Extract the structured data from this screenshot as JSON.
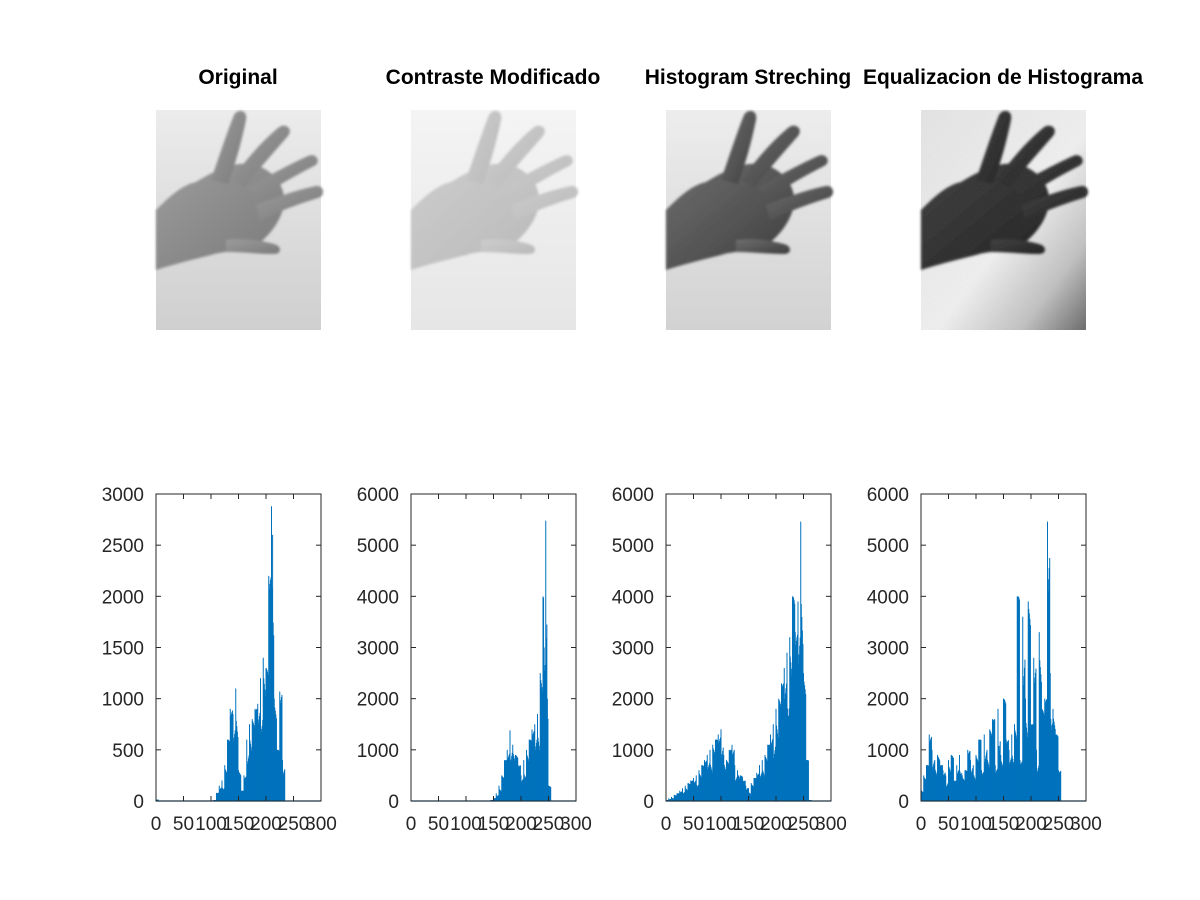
{
  "figure": {
    "background": "#ffffff",
    "series_color": "#0072bd",
    "axis_color": "#262626"
  },
  "image_panels": [
    {
      "title": "Original",
      "style": "original"
    },
    {
      "title": "Contraste Modificado",
      "style": "contrast"
    },
    {
      "title": "Histogram Streching",
      "style": "stretch"
    },
    {
      "title": "Equalizacion de Histograma",
      "style": "equalized"
    }
  ],
  "chart_data": [
    {
      "type": "bar",
      "title": "",
      "xlabel": "",
      "ylabel": "",
      "xlim": [
        0,
        300
      ],
      "ylim": [
        0,
        3000
      ],
      "xticks": [
        "0",
        "50",
        "100",
        "150",
        "200",
        "250",
        "300"
      ],
      "yticks": [
        "0",
        "500",
        "1000",
        "1500",
        "2000",
        "2500",
        "3000"
      ],
      "grid": false,
      "legend": "none",
      "series": [
        {
          "x": [
            0,
            5,
            10,
            15,
            20,
            25,
            30,
            35,
            40,
            45,
            50,
            55,
            60,
            65,
            70,
            75,
            80,
            85,
            90,
            95,
            100,
            105,
            110,
            115,
            120,
            125,
            130,
            135,
            140,
            145,
            150,
            155,
            160,
            165,
            170,
            175,
            180,
            185,
            190,
            195,
            200,
            205,
            210,
            212,
            215,
            220,
            225,
            230,
            235,
            240,
            245,
            250,
            255
          ],
          "values": [
            20,
            5,
            5,
            5,
            5,
            5,
            5,
            5,
            5,
            5,
            5,
            5,
            5,
            5,
            5,
            5,
            5,
            5,
            5,
            5,
            5,
            10,
            80,
            150,
            200,
            350,
            600,
            900,
            850,
            1100,
            300,
            100,
            250,
            600,
            750,
            800,
            900,
            950,
            1200,
            1400,
            1300,
            2200,
            2880,
            2600,
            1000,
            500,
            1070,
            400,
            0,
            0,
            0,
            0,
            0
          ]
        }
      ]
    },
    {
      "type": "bar",
      "title": "",
      "xlabel": "",
      "ylabel": "",
      "xlim": [
        0,
        300
      ],
      "ylim": [
        0,
        6000
      ],
      "xticks": [
        "0",
        "50",
        "100",
        "150",
        "200",
        "250",
        "300"
      ],
      "yticks": [
        "0",
        "1000",
        "2000",
        "3000",
        "4000",
        "5000",
        "6000"
      ],
      "grid": false,
      "legend": "none",
      "series": [
        {
          "x": [
            0,
            10,
            20,
            30,
            40,
            50,
            60,
            70,
            80,
            90,
            100,
            110,
            120,
            130,
            140,
            145,
            150,
            155,
            160,
            165,
            170,
            175,
            180,
            185,
            190,
            195,
            200,
            205,
            210,
            215,
            220,
            225,
            230,
            235,
            240,
            242,
            245,
            248,
            250,
            255
          ],
          "values": [
            10,
            5,
            5,
            5,
            5,
            5,
            5,
            5,
            5,
            5,
            5,
            5,
            5,
            5,
            5,
            20,
            60,
            150,
            300,
            500,
            800,
            1000,
            1380,
            1100,
            900,
            700,
            500,
            800,
            1000,
            1200,
            1400,
            1500,
            1700,
            2500,
            4000,
            3000,
            5480,
            2000,
            300,
            0
          ]
        }
      ]
    },
    {
      "type": "bar",
      "title": "",
      "xlabel": "",
      "ylabel": "",
      "xlim": [
        0,
        300
      ],
      "ylim": [
        0,
        6000
      ],
      "xticks": [
        "0",
        "50",
        "100",
        "150",
        "200",
        "250",
        "300"
      ],
      "yticks": [
        "0",
        "1000",
        "2000",
        "3000",
        "4000",
        "5000",
        "6000"
      ],
      "grid": false,
      "legend": "none",
      "series": [
        {
          "x": [
            0,
            5,
            10,
            15,
            20,
            25,
            30,
            35,
            40,
            45,
            50,
            55,
            60,
            65,
            70,
            75,
            80,
            85,
            90,
            95,
            100,
            105,
            110,
            115,
            120,
            125,
            130,
            135,
            140,
            145,
            150,
            155,
            160,
            165,
            170,
            175,
            180,
            185,
            190,
            195,
            200,
            205,
            210,
            215,
            220,
            225,
            230,
            235,
            240,
            245,
            250,
            255,
            260,
            265,
            270,
            275,
            280
          ],
          "values": [
            20,
            50,
            80,
            120,
            150,
            200,
            250,
            300,
            350,
            400,
            450,
            500,
            600,
            700,
            800,
            900,
            1000,
            1100,
            1200,
            1300,
            1400,
            900,
            800,
            1000,
            1100,
            700,
            600,
            500,
            400,
            300,
            250,
            350,
            450,
            550,
            700,
            800,
            900,
            1100,
            1300,
            1500,
            1800,
            2000,
            2300,
            2600,
            2900,
            3200,
            4000,
            3300,
            3900,
            5460,
            2500,
            800,
            20,
            0,
            0,
            0,
            0
          ]
        }
      ]
    },
    {
      "type": "bar",
      "title": "",
      "xlabel": "",
      "ylabel": "",
      "xlim": [
        0,
        300
      ],
      "ylim": [
        0,
        6000
      ],
      "xticks": [
        "0",
        "50",
        "100",
        "150",
        "200",
        "250",
        "300"
      ],
      "yticks": [
        "0",
        "1000",
        "2000",
        "3000",
        "4000",
        "5000",
        "6000"
      ],
      "grid": false,
      "legend": "none",
      "series": [
        {
          "x": [
            0,
            5,
            10,
            15,
            20,
            25,
            30,
            35,
            40,
            45,
            50,
            55,
            60,
            65,
            70,
            75,
            80,
            85,
            90,
            95,
            100,
            105,
            110,
            115,
            120,
            125,
            130,
            135,
            140,
            145,
            150,
            155,
            160,
            165,
            170,
            175,
            180,
            185,
            190,
            195,
            200,
            205,
            210,
            215,
            220,
            225,
            230,
            235,
            240,
            245,
            250,
            255,
            260,
            265,
            270,
            275,
            280
          ],
          "values": [
            300,
            500,
            700,
            1300,
            1000,
            800,
            900,
            700,
            600,
            500,
            800,
            900,
            400,
            700,
            900,
            500,
            600,
            1000,
            800,
            700,
            900,
            1200,
            600,
            1300,
            1000,
            1400,
            1600,
            700,
            1800,
            900,
            2000,
            1200,
            1000,
            1300,
            1500,
            4000,
            800,
            3600,
            2000,
            3900,
            1500,
            2800,
            1000,
            3300,
            1800,
            2000,
            5460,
            2500,
            1800,
            1300,
            600,
            0,
            0,
            0,
            0,
            0,
            0
          ]
        }
      ]
    }
  ]
}
